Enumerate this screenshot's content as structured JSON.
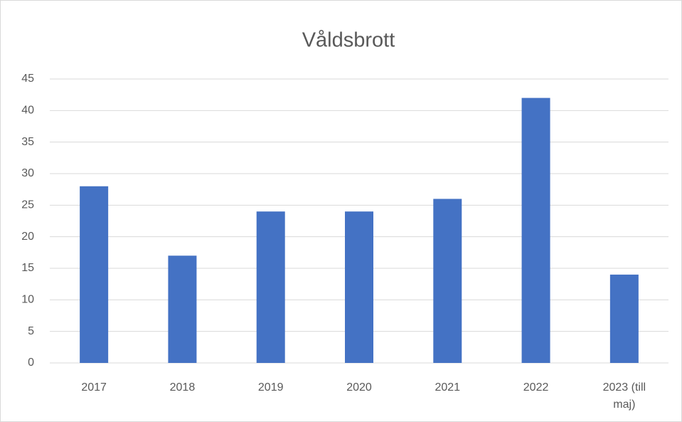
{
  "chart_data": {
    "type": "bar",
    "title": "Våldsbrott",
    "categories": [
      "2017",
      "2018",
      "2019",
      "2020",
      "2021",
      "2022",
      "2023 (till maj)"
    ],
    "values": [
      28,
      17,
      24,
      24,
      26,
      42,
      14
    ],
    "color": "#4472c4",
    "ylim": [
      0,
      45
    ],
    "yticks": [
      0,
      5,
      10,
      15,
      20,
      25,
      30,
      35,
      40,
      45
    ],
    "grid": true
  }
}
